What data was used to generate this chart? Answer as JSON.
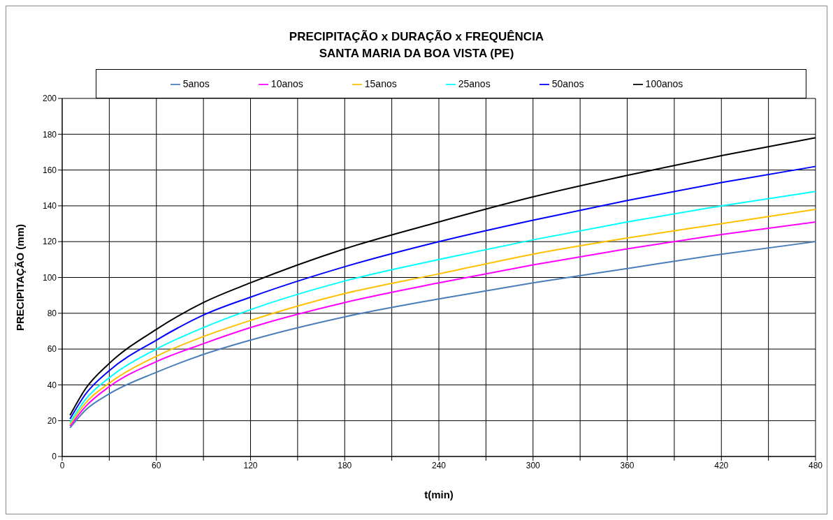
{
  "chart_data": {
    "type": "line",
    "title": "PRECIPITAÇÃO x DURAÇÃO x FREQUÊNCIA",
    "subtitle": "SANTA MARIA DA BOA VISTA (PE)",
    "xlabel": "t(min)",
    "ylabel": "PRECIPITAÇÃO (mm)",
    "x": [
      5,
      15,
      30,
      60,
      90,
      120,
      180,
      240,
      300,
      360,
      420,
      480
    ],
    "series": [
      {
        "name": "5anos",
        "color": "#4a7ebb",
        "values": [
          16,
          26,
          35,
          47,
          57,
          65,
          78,
          88,
          97,
          105,
          113,
          120
        ]
      },
      {
        "name": "10anos",
        "color": "#ff00ff",
        "values": [
          17,
          28,
          39,
          53,
          63,
          72,
          86,
          97,
          107,
          116,
          124,
          131
        ]
      },
      {
        "name": "15anos",
        "color": "#ffc000",
        "values": [
          18,
          30,
          41,
          56,
          67,
          76,
          91,
          102,
          113,
          122,
          130,
          138
        ]
      },
      {
        "name": "25anos",
        "color": "#00ffff",
        "values": [
          19,
          32,
          44,
          60,
          72,
          82,
          98,
          110,
          121,
          131,
          140,
          148
        ]
      },
      {
        "name": "50anos",
        "color": "#0000ff",
        "values": [
          21,
          35,
          48,
          65,
          79,
          89,
          106,
          120,
          132,
          143,
          153,
          162
        ]
      },
      {
        "name": "100anos",
        "color": "#000000",
        "values": [
          23,
          38,
          52,
          71,
          86,
          97,
          116,
          131,
          145,
          157,
          168,
          178
        ]
      }
    ],
    "xlim": [
      0,
      480
    ],
    "xticks": [
      0,
      {
        "value": 30,
        "label": null
      },
      60,
      {
        "value": 90,
        "label": null
      },
      120,
      {
        "value": 150,
        "label": null
      },
      180,
      {
        "value": 210,
        "label": null
      },
      240,
      {
        "value": 270,
        "label": null
      },
      300,
      {
        "value": 330,
        "label": null
      },
      360,
      {
        "value": 390,
        "label": null
      },
      420,
      {
        "value": 450,
        "label": null
      },
      480
    ],
    "ylim": [
      0,
      200
    ],
    "yticks": [
      0,
      20,
      40,
      60,
      80,
      100,
      120,
      140,
      160,
      180,
      200
    ],
    "grid": true,
    "legend": "top",
    "marker": "none",
    "line_style": "solid"
  }
}
